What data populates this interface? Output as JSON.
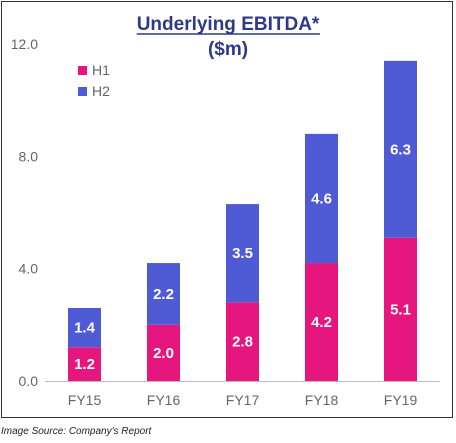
{
  "chart_data": {
    "type": "bar",
    "stacked": true,
    "title": "Underlying EBITDA*",
    "subtitle": "($m)",
    "categories": [
      "FY15",
      "FY16",
      "FY17",
      "FY18",
      "FY19"
    ],
    "series": [
      {
        "name": "H1",
        "values": [
          1.2,
          2.0,
          2.8,
          4.2,
          5.1
        ],
        "color": "#e5177f"
      },
      {
        "name": "H2",
        "values": [
          1.4,
          2.2,
          3.5,
          4.6,
          6.3
        ],
        "color": "#4f5bd5"
      }
    ],
    "data_labels": {
      "H1": [
        "1.2",
        "2.0",
        "2.8",
        "4.2",
        "5.1"
      ],
      "H2": [
        "1.4",
        "2.2",
        "3.5",
        "4.6",
        "6.3"
      ]
    },
    "y_ticks": [
      "0.0",
      "4.0",
      "8.0",
      "12.0"
    ],
    "ylim": [
      0,
      12
    ],
    "xlabel": "",
    "ylabel": "",
    "grid": false,
    "legend_position": "top-left"
  },
  "source_note": "Image Source: Company's Report"
}
